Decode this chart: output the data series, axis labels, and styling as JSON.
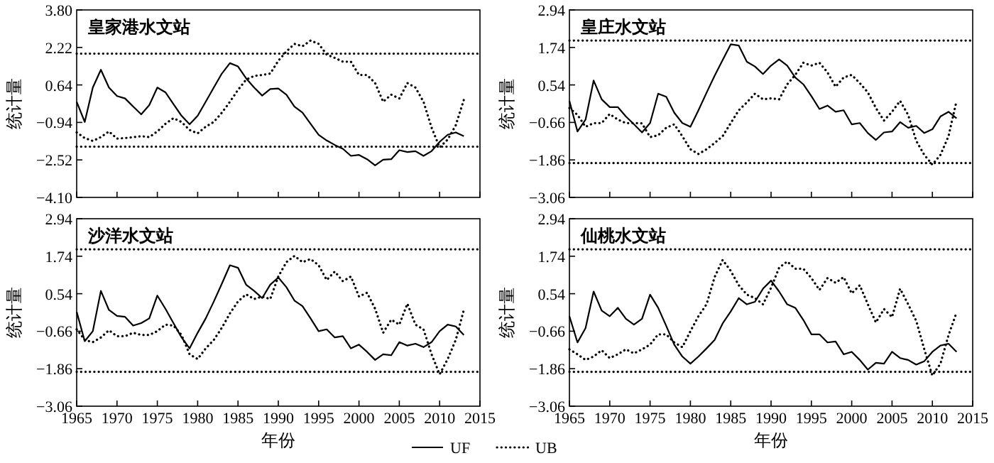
{
  "chart_data": [
    {
      "type": "line",
      "title": "皇家港水文站",
      "ylabel": "统计量",
      "tick_labels": "y",
      "x": [
        1965,
        1966,
        1967,
        1968,
        1969,
        1970,
        1971,
        1972,
        1973,
        1974,
        1975,
        1976,
        1977,
        1978,
        1979,
        1980,
        1981,
        1982,
        1983,
        1984,
        1985,
        1986,
        1987,
        1988,
        1989,
        1990,
        1991,
        1992,
        1993,
        1994,
        1995,
        1996,
        1997,
        1998,
        1999,
        2000,
        2001,
        2002,
        2003,
        2004,
        2005,
        2006,
        2007,
        2008,
        2009,
        2010,
        2011,
        2012,
        2013
      ],
      "xlim": [
        1965,
        2015
      ],
      "xticks": [
        1965,
        1970,
        1975,
        1980,
        1985,
        1990,
        1995,
        2000,
        2005,
        2010,
        2015
      ],
      "ylim": [
        -4.1,
        3.8
      ],
      "yticks": [
        {
          "value": -4.1,
          "label": "−4.10"
        },
        {
          "value": -2.52,
          "label": "−2.52"
        },
        {
          "value": -0.94,
          "label": "−0.94"
        },
        {
          "value": 0.64,
          "label": "0.64"
        },
        {
          "value": 2.22,
          "label": "2.22"
        },
        {
          "value": 3.8,
          "label": "3.80"
        }
      ],
      "ref_lines": [
        {
          "axis": "y",
          "value": 1.96,
          "line_style": "dotted"
        },
        {
          "axis": "y",
          "value": -1.96,
          "line_style": "dotted"
        }
      ],
      "series": [
        {
          "color": "#000000",
          "line_style": "solid",
          "values": [
            -0.07,
            -0.92,
            0.53,
            1.28,
            0.53,
            0.17,
            0.07,
            -0.27,
            -0.6,
            -0.21,
            0.53,
            0.33,
            -0.17,
            -0.66,
            -1.02,
            -0.66,
            -0.07,
            0.53,
            1.12,
            1.56,
            1.42,
            0.92,
            0.53,
            0.19,
            0.47,
            0.49,
            0.23,
            -0.27,
            -0.53,
            -1.0,
            -1.46,
            -1.7,
            -1.89,
            -2.05,
            -2.35,
            -2.31,
            -2.49,
            -2.75,
            -2.51,
            -2.49,
            -2.11,
            -2.19,
            -2.15,
            -2.35,
            -2.15,
            -1.76,
            -1.46,
            -1.36,
            -1.52
          ]
        },
        {
          "color": "#000000",
          "line_style": "dotted",
          "values": [
            -1.36,
            -1.6,
            -1.72,
            -1.56,
            -1.32,
            -1.62,
            -1.6,
            -1.56,
            -1.52,
            -1.56,
            -1.32,
            -1.0,
            -0.76,
            -0.92,
            -1.26,
            -1.4,
            -1.12,
            -0.92,
            -0.53,
            -0.07,
            0.43,
            0.86,
            1.02,
            1.06,
            1.12,
            1.66,
            2.05,
            2.37,
            2.27,
            2.51,
            2.37,
            1.92,
            1.78,
            1.62,
            1.62,
            1.06,
            1.06,
            0.72,
            -0.07,
            0.23,
            0.07,
            0.72,
            0.53,
            -0.07,
            -1.16,
            -1.99,
            -1.66,
            -1.06,
            0.01
          ]
        }
      ]
    },
    {
      "type": "line",
      "title": "皇庄水文站",
      "ylabel": "统计量",
      "tick_labels": "y",
      "x": [
        1965,
        1966,
        1967,
        1968,
        1969,
        1970,
        1971,
        1972,
        1973,
        1974,
        1975,
        1976,
        1977,
        1978,
        1979,
        1980,
        1981,
        1982,
        1983,
        1984,
        1985,
        1986,
        1987,
        1988,
        1989,
        1990,
        1991,
        1992,
        1993,
        1994,
        1995,
        1996,
        1997,
        1998,
        1999,
        2000,
        2001,
        2002,
        2003,
        2004,
        2005,
        2006,
        2007,
        2008,
        2009,
        2010,
        2011,
        2012,
        2013
      ],
      "xlim": [
        1965,
        2015
      ],
      "xticks": [
        1965,
        1970,
        1975,
        1980,
        1985,
        1990,
        1995,
        2000,
        2005,
        2010,
        2015
      ],
      "ylim": [
        -3.06,
        2.94
      ],
      "yticks": [
        {
          "value": -3.06,
          "label": "−3.06"
        },
        {
          "value": -1.86,
          "label": "−1.86"
        },
        {
          "value": -0.66,
          "label": "−0.66"
        },
        0.54,
        1.74,
        2.94
      ],
      "ref_lines": [
        {
          "axis": "y",
          "value": 1.96,
          "line_style": "dotted"
        },
        {
          "axis": "y",
          "value": -1.96,
          "line_style": "dotted"
        }
      ],
      "series": [
        {
          "color": "#000000",
          "line_style": "solid",
          "values": [
            0.03,
            -0.95,
            -0.57,
            0.68,
            0.08,
            -0.17,
            -0.17,
            -0.47,
            -0.72,
            -0.98,
            -0.68,
            0.26,
            0.16,
            -0.35,
            -0.68,
            -0.8,
            -0.27,
            0.29,
            0.83,
            1.34,
            1.84,
            1.8,
            1.28,
            1.13,
            0.89,
            1.16,
            1.36,
            1.16,
            0.78,
            0.56,
            0.18,
            -0.23,
            -0.12,
            -0.32,
            -0.27,
            -0.72,
            -0.68,
            -1.0,
            -1.22,
            -0.98,
            -0.95,
            -0.65,
            -0.83,
            -0.77,
            -1.0,
            -0.88,
            -0.47,
            -0.32,
            -0.53
          ]
        },
        {
          "color": "#000000",
          "line_style": "dotted",
          "values": [
            -0.2,
            -0.42,
            -0.8,
            -0.68,
            -0.68,
            -0.39,
            -0.57,
            -0.68,
            -0.68,
            -0.69,
            -1.13,
            -1.07,
            -0.83,
            -0.72,
            -1.1,
            -1.52,
            -1.67,
            -1.52,
            -1.32,
            -1.1,
            -0.68,
            -0.27,
            -0.02,
            0.26,
            0.08,
            0.11,
            0.08,
            0.56,
            0.86,
            1.25,
            1.16,
            1.25,
            0.94,
            0.48,
            0.78,
            0.86,
            0.6,
            0.3,
            -0.2,
            -0.6,
            -0.32,
            0.03,
            -0.42,
            -1.25,
            -1.7,
            -2.01,
            -1.7,
            -1.1,
            0.03
          ]
        }
      ]
    },
    {
      "type": "line",
      "title": "沙洋水文站",
      "xlabel": "年份",
      "ylabel": "统计量",
      "x": [
        1965,
        1966,
        1967,
        1968,
        1969,
        1970,
        1971,
        1972,
        1973,
        1974,
        1975,
        1976,
        1977,
        1978,
        1979,
        1980,
        1981,
        1982,
        1983,
        1984,
        1985,
        1986,
        1987,
        1988,
        1989,
        1990,
        1991,
        1992,
        1993,
        1994,
        1995,
        1996,
        1997,
        1998,
        1999,
        2000,
        2001,
        2002,
        2003,
        2004,
        2005,
        2006,
        2007,
        2008,
        2009,
        2010,
        2011,
        2012,
        2013
      ],
      "xlim": [
        1965,
        2015
      ],
      "xticks": [
        1965,
        1970,
        1975,
        1980,
        1985,
        1990,
        1995,
        2000,
        2005,
        2010,
        2015
      ],
      "ylim": [
        -3.06,
        2.94
      ],
      "yticks": [
        {
          "value": -3.06,
          "label": "−3.06"
        },
        {
          "value": -1.86,
          "label": "−1.86"
        },
        {
          "value": -0.66,
          "label": "−0.66"
        },
        0.54,
        1.74,
        2.94
      ],
      "ref_lines": [
        {
          "axis": "y",
          "value": 1.96,
          "line_style": "dotted"
        },
        {
          "axis": "y",
          "value": -1.96,
          "line_style": "dotted"
        }
      ],
      "series": [
        {
          "color": "#000000",
          "line_style": "solid",
          "values": [
            -0.04,
            -0.98,
            -0.66,
            0.63,
            0.02,
            -0.17,
            -0.2,
            -0.48,
            -0.4,
            -0.25,
            0.48,
            0.06,
            -0.4,
            -0.86,
            -1.21,
            -0.71,
            -0.25,
            0.29,
            0.86,
            1.45,
            1.37,
            0.83,
            0.63,
            0.4,
            0.83,
            1.06,
            0.75,
            0.32,
            0.14,
            -0.25,
            -0.66,
            -0.6,
            -0.86,
            -0.82,
            -1.21,
            -1.09,
            -1.32,
            -1.58,
            -1.4,
            -1.43,
            -1.01,
            -1.12,
            -1.06,
            -1.17,
            -1.01,
            -0.66,
            -0.45,
            -0.51,
            -0.78
          ]
        },
        {
          "color": "#000000",
          "line_style": "dotted",
          "values": [
            -0.6,
            -0.94,
            -1.01,
            -0.86,
            -0.63,
            -0.82,
            -0.82,
            -0.71,
            -0.78,
            -0.78,
            -0.66,
            -0.45,
            -0.48,
            -0.78,
            -1.4,
            -1.55,
            -1.21,
            -0.94,
            -0.55,
            -0.09,
            0.29,
            0.52,
            0.37,
            0.45,
            0.37,
            1.09,
            1.55,
            1.75,
            1.55,
            1.65,
            1.45,
            0.98,
            1.25,
            0.94,
            1.09,
            0.45,
            0.57,
            0.06,
            -0.71,
            -0.29,
            -0.45,
            0.22,
            -0.45,
            -0.6,
            -1.4,
            -2.04,
            -1.55,
            -0.94,
            0.02
          ]
        }
      ]
    },
    {
      "type": "line",
      "title": "仙桃水文站",
      "xlabel": "年份",
      "ylabel": "统计量",
      "legend": "bottom",
      "x": [
        1965,
        1966,
        1967,
        1968,
        1969,
        1970,
        1971,
        1972,
        1973,
        1974,
        1975,
        1976,
        1977,
        1978,
        1979,
        1980,
        1981,
        1982,
        1983,
        1984,
        1985,
        1986,
        1987,
        1988,
        1989,
        1990,
        1991,
        1992,
        1993,
        1994,
        1995,
        1996,
        1997,
        1998,
        1999,
        2000,
        2001,
        2002,
        2003,
        2004,
        2005,
        2006,
        2007,
        2008,
        2009,
        2010,
        2011,
        2012,
        2013
      ],
      "xlim": [
        1965,
        2015
      ],
      "xticks": [
        1965,
        1970,
        1975,
        1980,
        1985,
        1990,
        1995,
        2000,
        2005,
        2010,
        2015
      ],
      "ylim": [
        -3.06,
        2.94
      ],
      "yticks": [
        {
          "value": -3.06,
          "label": "−3.06"
        },
        {
          "value": -1.86,
          "label": "−1.86"
        },
        {
          "value": -0.66,
          "label": "−0.66"
        },
        0.54,
        1.74,
        2.94
      ],
      "ref_lines": [
        {
          "axis": "y",
          "value": 1.96,
          "line_style": "dotted"
        },
        {
          "axis": "y",
          "value": -1.96,
          "line_style": "dotted"
        }
      ],
      "series": [
        {
          "name": "UF",
          "color": "#000000",
          "line_style": "solid",
          "values": [
            -0.18,
            -1.02,
            -0.56,
            0.61,
            0.0,
            -0.18,
            0.09,
            -0.26,
            -0.45,
            -0.26,
            0.51,
            0.09,
            -0.49,
            -1.09,
            -1.47,
            -1.7,
            -1.47,
            -1.21,
            -0.94,
            -0.41,
            -0.03,
            0.4,
            0.2,
            0.28,
            0.7,
            0.96,
            0.61,
            0.2,
            0.09,
            -0.3,
            -0.76,
            -0.76,
            -1.02,
            -0.99,
            -1.4,
            -1.32,
            -1.58,
            -1.89,
            -1.67,
            -1.7,
            -1.32,
            -1.52,
            -1.58,
            -1.73,
            -1.62,
            -1.32,
            -1.12,
            -1.06,
            -1.32
          ]
        },
        {
          "name": "UB",
          "color": "#000000",
          "line_style": "dotted",
          "values": [
            -1.24,
            -1.4,
            -1.58,
            -1.47,
            -1.27,
            -1.52,
            -1.4,
            -1.24,
            -1.37,
            -1.24,
            -1.09,
            -0.76,
            -0.76,
            -1.02,
            -1.17,
            -0.66,
            -0.18,
            0.2,
            1.07,
            1.62,
            1.27,
            0.81,
            0.51,
            0.4,
            0.2,
            0.73,
            1.37,
            1.57,
            1.34,
            1.34,
            1.04,
            0.66,
            1.04,
            0.89,
            1.07,
            0.55,
            0.81,
            0.2,
            -0.38,
            0.05,
            -0.21,
            0.7,
            0.2,
            -0.33,
            -1.24,
            -2.08,
            -1.7,
            -0.79,
            -0.06
          ]
        }
      ]
    }
  ]
}
